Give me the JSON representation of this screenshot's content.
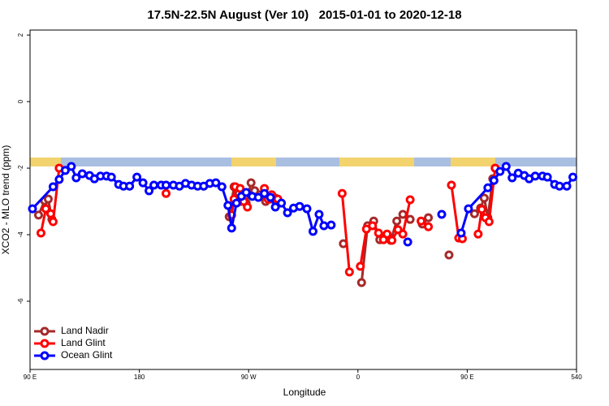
{
  "chart_data": {
    "type": "line",
    "title": "17.5N-22.5N August (Ver 10)   2015-01-01 to 2020-12-18",
    "x_label": "Longitude",
    "y_label": "XCO2 - MLO trend (ppm)",
    "xlim": [
      90,
      540
    ],
    "ylim": [
      -8.05,
      2.15
    ],
    "xticks": [
      {
        "value": 90,
        "label": "90 E"
      },
      180,
      {
        "value": 270,
        "label": "90 W"
      },
      {
        "value": 360,
        "label": "0"
      },
      {
        "value": 450,
        "label": "90 E"
      },
      540
    ],
    "yticks": [
      2,
      0,
      -2,
      -4,
      -6
    ],
    "legend": "bottom-left",
    "series": [
      {
        "name": "Land Nadir",
        "color": "#a52a2a",
        "x": [
          97,
          102,
          105,
          108,
          null,
          254,
          258,
          262,
          264,
          268,
          272,
          275,
          279,
          284,
          288,
          292,
          null,
          348,
          null,
          363,
          368,
          373,
          378,
          383,
          387,
          392,
          397,
          403,
          null,
          413,
          418,
          null,
          435,
          null,
          456,
          461,
          464,
          467,
          471
        ],
        "values": [
          -3.41,
          -2.98,
          -2.93,
          -3.54,
          null,
          -3.46,
          -2.56,
          -2.76,
          -3.0,
          -3.05,
          -2.44,
          -2.68,
          -2.8,
          -3.0,
          -2.93,
          -2.9,
          null,
          -4.27,
          null,
          -5.44,
          -3.73,
          -3.59,
          -4.15,
          -4.07,
          -4.17,
          -3.59,
          -3.39,
          -3.54,
          null,
          -3.68,
          -3.49,
          null,
          -4.61,
          null,
          -3.37,
          -3.2,
          -2.9,
          -3.49,
          -2.32
        ]
      },
      {
        "name": "Land Glint",
        "color": "#ff0000",
        "x": [
          99,
          103,
          107,
          109,
          114,
          null,
          202,
          null,
          256,
          258,
          259,
          263,
          266,
          269,
          null,
          283,
          286,
          289,
          294,
          null,
          347,
          353,
          null,
          362,
          367,
          372,
          377,
          381,
          384,
          388,
          393,
          397,
          403,
          null,
          412,
          418,
          null,
          437,
          443,
          446,
          null,
          459,
          462,
          465,
          468,
          473
        ],
        "values": [
          -3.95,
          -3.22,
          -3.37,
          -3.61,
          -2.0,
          null,
          -2.76,
          null,
          -3.41,
          -2.93,
          -2.56,
          -2.61,
          -3.0,
          -3.17,
          null,
          -2.61,
          -2.93,
          -2.8,
          -2.93,
          null,
          -2.76,
          -5.12,
          null,
          -4.95,
          -3.83,
          -3.73,
          -3.95,
          -4.15,
          -3.98,
          -4.17,
          -3.85,
          -3.98,
          -2.95,
          null,
          -3.59,
          -3.76,
          null,
          -2.51,
          -4.1,
          -4.12,
          null,
          -3.98,
          -3.24,
          -3.49,
          -3.61,
          -2.0
        ]
      },
      {
        "name": "Ocean Glint",
        "color": "#0000ff",
        "x": [
          92,
          109,
          114,
          119,
          124,
          128,
          133,
          139,
          143,
          148,
          153,
          157,
          163,
          167,
          172,
          178,
          183,
          188,
          192,
          198,
          202,
          208,
          213,
          218,
          223,
          228,
          233,
          238,
          243,
          248,
          253,
          256,
          260,
          264,
          268,
          273,
          278,
          283,
          288,
          292,
          297,
          302,
          307,
          312,
          318,
          323,
          328,
          332,
          338,
          null,
          401,
          null,
          429,
          null,
          445,
          451,
          467,
          472,
          477,
          482,
          487,
          492,
          497,
          501,
          506,
          512,
          516,
          522,
          526,
          532,
          537
        ],
        "values": [
          -3.22,
          -2.56,
          -2.34,
          -2.07,
          -1.95,
          -2.29,
          -2.17,
          -2.22,
          -2.32,
          -2.24,
          -2.24,
          -2.27,
          -2.49,
          -2.54,
          -2.54,
          -2.27,
          -2.44,
          -2.68,
          -2.51,
          -2.51,
          -2.51,
          -2.51,
          -2.54,
          -2.46,
          -2.51,
          -2.54,
          -2.54,
          -2.46,
          -2.44,
          -2.56,
          -3.12,
          -3.8,
          -3.05,
          -2.85,
          -2.73,
          -2.85,
          -2.88,
          -2.76,
          -2.88,
          -3.17,
          -3.05,
          -3.34,
          -3.2,
          -3.15,
          -3.22,
          -3.9,
          -3.39,
          -3.73,
          -3.71,
          null,
          -4.22,
          null,
          -3.39,
          null,
          -3.95,
          -3.22,
          -2.59,
          -2.37,
          -2.1,
          -1.95,
          -2.29,
          -2.15,
          -2.22,
          -2.32,
          -2.24,
          -2.24,
          -2.27,
          -2.49,
          -2.54,
          -2.54,
          -2.27
        ]
      }
    ]
  }
}
